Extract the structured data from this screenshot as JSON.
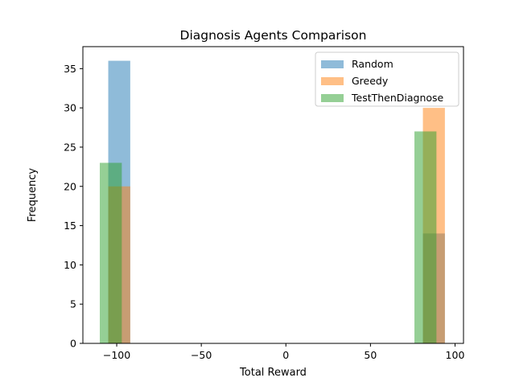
{
  "chart_data": {
    "type": "bar",
    "title": "Diagnosis Agents Comparison",
    "xlabel": "Total Reward",
    "ylabel": "Frequency",
    "xlim": [
      -120,
      105
    ],
    "ylim": [
      0,
      37.8
    ],
    "xticks": [
      -100,
      -50,
      0,
      50,
      100
    ],
    "yticks": [
      0,
      5,
      10,
      15,
      20,
      25,
      30,
      35
    ],
    "legend_position": "top-right",
    "series": [
      {
        "name": "Random",
        "color": "#1f77b4",
        "bins": [
          {
            "x0": -105,
            "x1": -92,
            "value": 36
          },
          {
            "x0": 81,
            "x1": 94,
            "value": 14
          }
        ]
      },
      {
        "name": "Greedy",
        "color": "#ff7f0e",
        "bins": [
          {
            "x0": -105,
            "x1": -92,
            "value": 20
          },
          {
            "x0": 81,
            "x1": 94,
            "value": 30
          }
        ]
      },
      {
        "name": "TestThenDiagnose",
        "color": "#2ca02c",
        "bins": [
          {
            "x0": -110,
            "x1": -97,
            "value": 23
          },
          {
            "x0": 76,
            "x1": 89,
            "value": 27
          }
        ]
      }
    ]
  }
}
